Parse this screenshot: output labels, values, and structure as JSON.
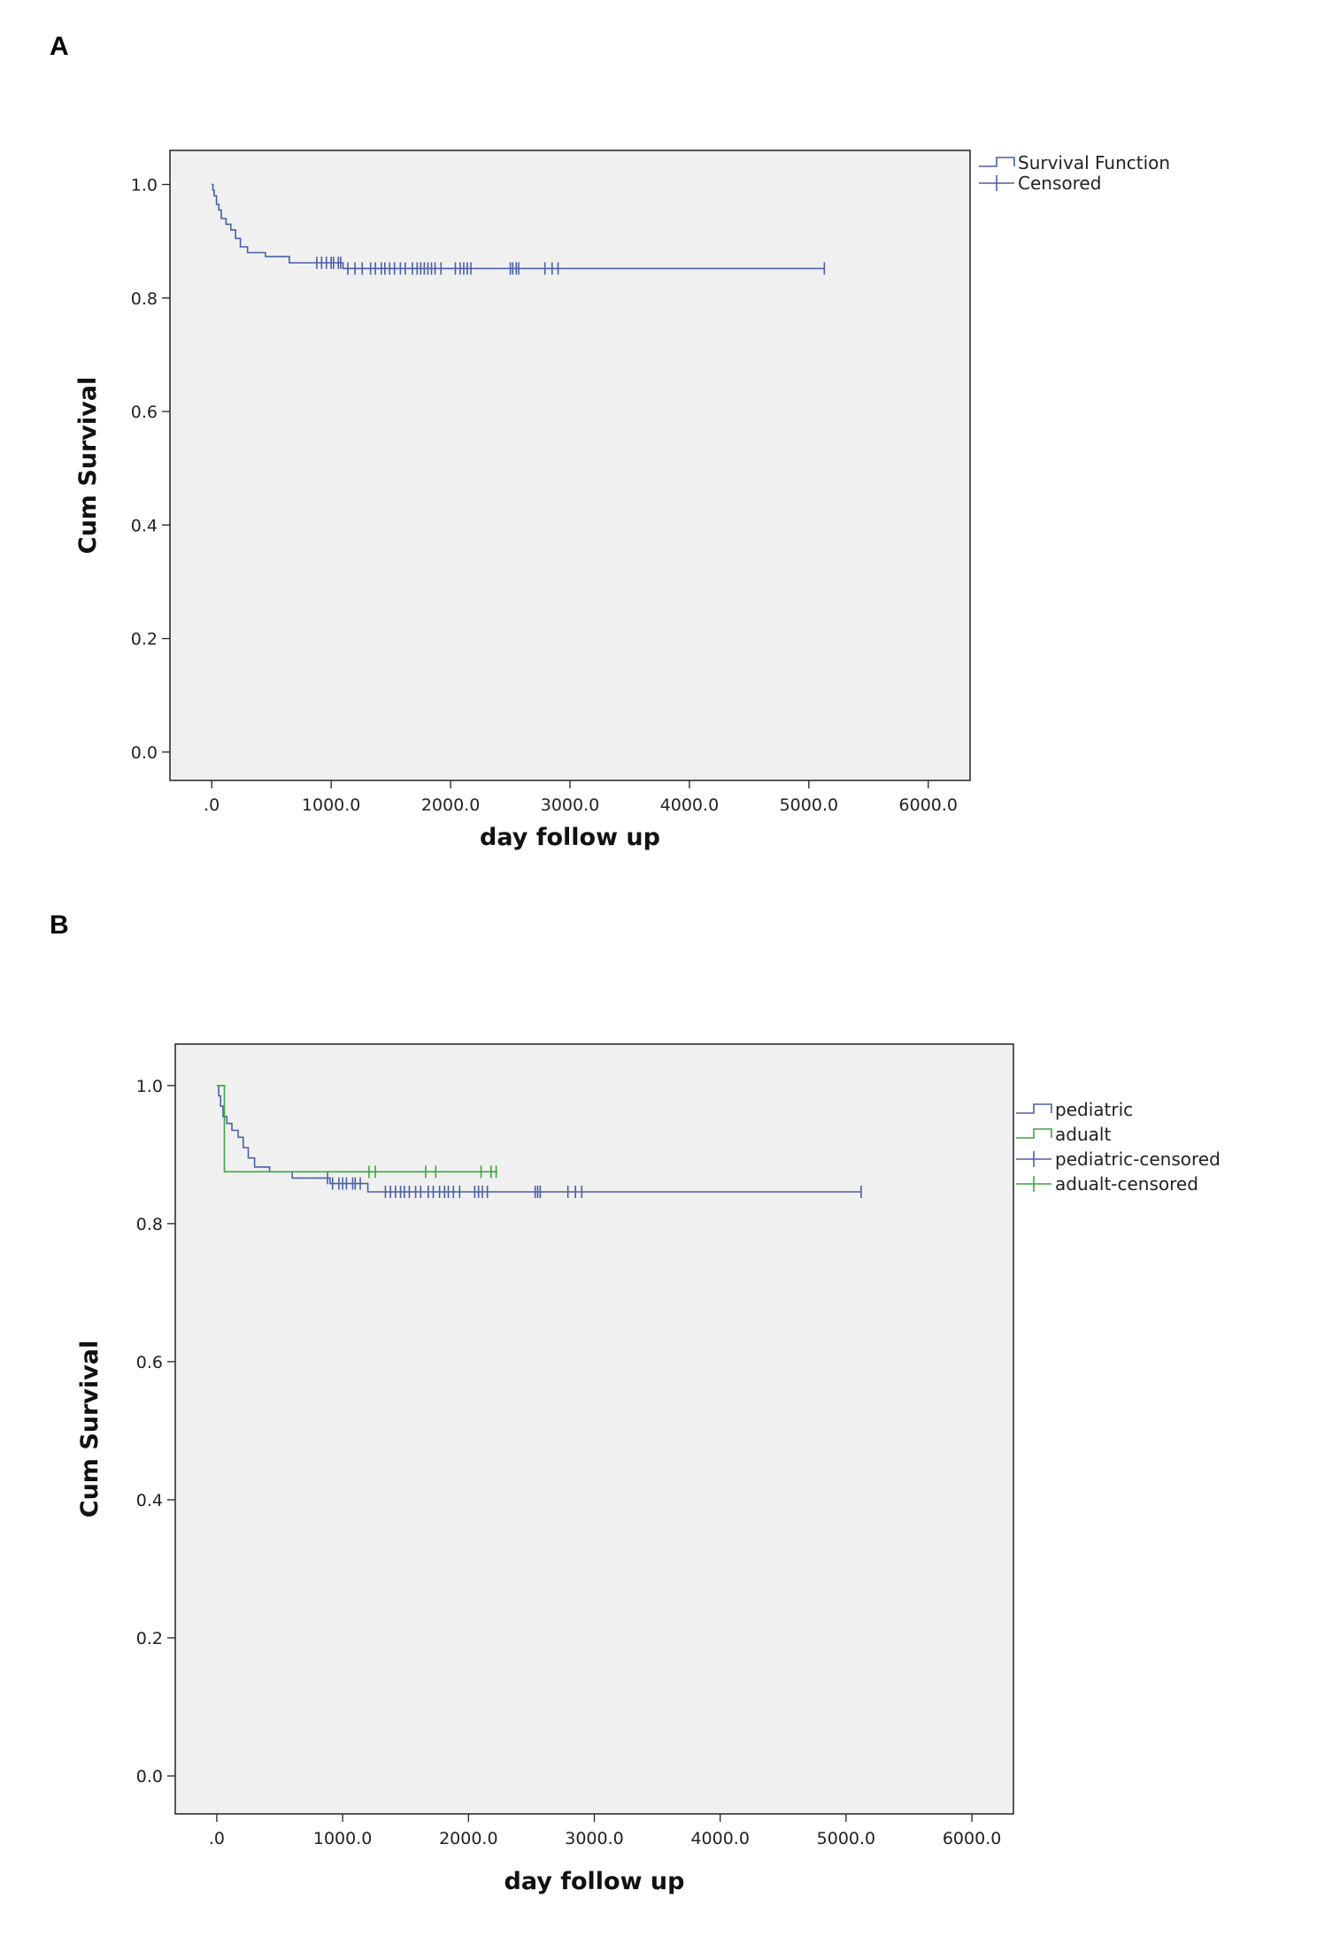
{
  "panels": [
    {
      "letter": "A"
    },
    {
      "letter": "B"
    }
  ],
  "chart_data": [
    {
      "type": "line",
      "subtype": "kaplan-meier",
      "xlabel": "day follow up",
      "ylabel": "Cum Survival",
      "xlim": [
        -350,
        6350
      ],
      "ylim": [
        -0.05,
        1.06
      ],
      "xticks": [
        0,
        1000,
        2000,
        3000,
        4000,
        5000,
        6000
      ],
      "xtick_labels": [
        ".0",
        "1000.0",
        "2000.0",
        "3000.0",
        "4000.0",
        "5000.0",
        "6000.0"
      ],
      "yticks": [
        0,
        0.2,
        0.4,
        0.6,
        0.8,
        1.0
      ],
      "ytick_labels": [
        "0.0",
        "0.2",
        "0.4",
        "0.6",
        "0.8",
        "1.0"
      ],
      "background": "#f0f0f0",
      "grid": false,
      "legend_position": "top-right, outside",
      "legend": [
        {
          "label": "Survival Function",
          "kind": "step",
          "color": "#4a5fa8"
        },
        {
          "label": "Censored",
          "kind": "censor",
          "color": "#4a5fa8"
        }
      ],
      "series": [
        {
          "color": "#4a5fa8",
          "steps": [
            [
              0,
              1.0
            ],
            [
              10,
              0.99
            ],
            [
              20,
              0.98
            ],
            [
              40,
              0.965
            ],
            [
              60,
              0.955
            ],
            [
              80,
              0.94
            ],
            [
              120,
              0.93
            ],
            [
              160,
              0.92
            ],
            [
              200,
              0.905
            ],
            [
              240,
              0.89
            ],
            [
              300,
              0.88
            ],
            [
              450,
              0.873
            ],
            [
              650,
              0.862
            ],
            [
              1100,
              0.852
            ],
            [
              5130,
              0.852
            ]
          ],
          "censored": [
            880,
            920,
            960,
            1000,
            1020,
            1060,
            1080,
            1140,
            1200,
            1260,
            1330,
            1370,
            1420,
            1450,
            1490,
            1530,
            1580,
            1620,
            1680,
            1720,
            1750,
            1780,
            1810,
            1840,
            1870,
            1920,
            2040,
            2080,
            2110,
            2140,
            2170,
            2500,
            2520,
            2550,
            2570,
            2790,
            2850,
            2900,
            5130
          ]
        }
      ]
    },
    {
      "type": "line",
      "subtype": "kaplan-meier",
      "xlabel": "day follow up",
      "ylabel": "Cum Survival",
      "xlim": [
        -330,
        6330
      ],
      "ylim": [
        -0.055,
        1.06
      ],
      "xticks": [
        0,
        1000,
        2000,
        3000,
        4000,
        5000,
        6000
      ],
      "xtick_labels": [
        ".0",
        "1000.0",
        "2000.0",
        "3000.0",
        "4000.0",
        "5000.0",
        "6000.0"
      ],
      "yticks": [
        0,
        0.2,
        0.4,
        0.6,
        0.8,
        1.0
      ],
      "ytick_labels": [
        "0.0",
        "0.2",
        "0.4",
        "0.6",
        "0.8",
        "1.0"
      ],
      "background": "#f0f0f0",
      "grid": false,
      "legend_position": "top-right, outside",
      "legend": [
        {
          "label": "pediatric",
          "kind": "step",
          "color": "#4a5fa8"
        },
        {
          "label": "adualt",
          "kind": "step",
          "color": "#3ca63c"
        },
        {
          "label": "pediatric-censored",
          "kind": "censor",
          "color": "#4a5fa8"
        },
        {
          "label": "adualt-censored",
          "kind": "censor",
          "color": "#3ca63c"
        }
      ],
      "series": [
        {
          "name": "pediatric",
          "color": "#4a5fa8",
          "steps": [
            [
              0,
              1.0
            ],
            [
              15,
              0.985
            ],
            [
              30,
              0.97
            ],
            [
              50,
              0.955
            ],
            [
              80,
              0.945
            ],
            [
              120,
              0.935
            ],
            [
              170,
              0.925
            ],
            [
              210,
              0.91
            ],
            [
              250,
              0.895
            ],
            [
              300,
              0.882
            ],
            [
              420,
              0.875
            ],
            [
              600,
              0.866
            ],
            [
              900,
              0.858
            ],
            [
              1200,
              0.846
            ],
            [
              5120,
              0.846
            ]
          ],
          "censored": [
            880,
            920,
            970,
            1000,
            1030,
            1080,
            1100,
            1140,
            1340,
            1380,
            1420,
            1460,
            1490,
            1530,
            1580,
            1620,
            1680,
            1720,
            1770,
            1810,
            1840,
            1880,
            1930,
            2050,
            2080,
            2110,
            2150,
            2530,
            2550,
            2570,
            2790,
            2850,
            2900,
            5120
          ]
        },
        {
          "name": "adualt",
          "color": "#3ca63c",
          "steps": [
            [
              0,
              1.0
            ],
            [
              60,
              1.0
            ],
            [
              60,
              0.875
            ],
            [
              2230,
              0.875
            ]
          ],
          "censored": [
            1210,
            1260,
            1660,
            1740,
            2100,
            2180,
            2220
          ]
        }
      ]
    }
  ]
}
